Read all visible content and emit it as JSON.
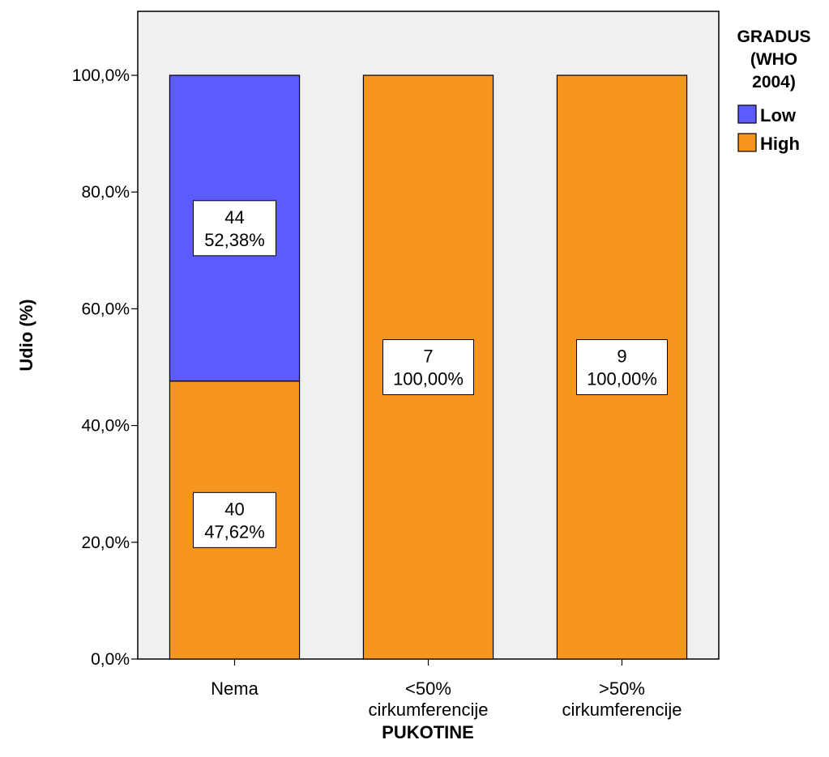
{
  "chart_data": {
    "type": "bar",
    "stacked": true,
    "categories": [
      "Nema",
      "<50% cirkumferencije",
      ">50% cirkumferencije"
    ],
    "series": [
      {
        "name": "High",
        "values": [
          47.62,
          100.0,
          100.0
        ],
        "counts": [
          40,
          7,
          9
        ],
        "labels": [
          "47,62%",
          "100,00%",
          "100,00%"
        ],
        "color": "#F7961E"
      },
      {
        "name": "Low",
        "values": [
          52.38,
          0,
          0
        ],
        "counts": [
          44,
          0,
          0
        ],
        "labels": [
          "52,38%",
          "",
          ""
        ],
        "color": "#5B5BFF"
      }
    ],
    "xlabel": "PUKOTINE",
    "ylabel": "Udio (%)",
    "ylim": [
      0,
      100
    ],
    "yticks": [
      0,
      20,
      40,
      60,
      80,
      100
    ],
    "ytick_labels": [
      "0,0%",
      "20,0%",
      "40,0%",
      "60,0%",
      "80,0%",
      "100,0%"
    ],
    "legend": {
      "title_lines": [
        "GRADUS",
        "(WHO",
        "2004)"
      ],
      "entries": [
        {
          "name": "Low",
          "color": "#5B5BFF"
        },
        {
          "name": "High",
          "color": "#F7961E"
        }
      ],
      "placement": "right"
    },
    "plot_background": "#F0F0F0",
    "grid": false
  }
}
